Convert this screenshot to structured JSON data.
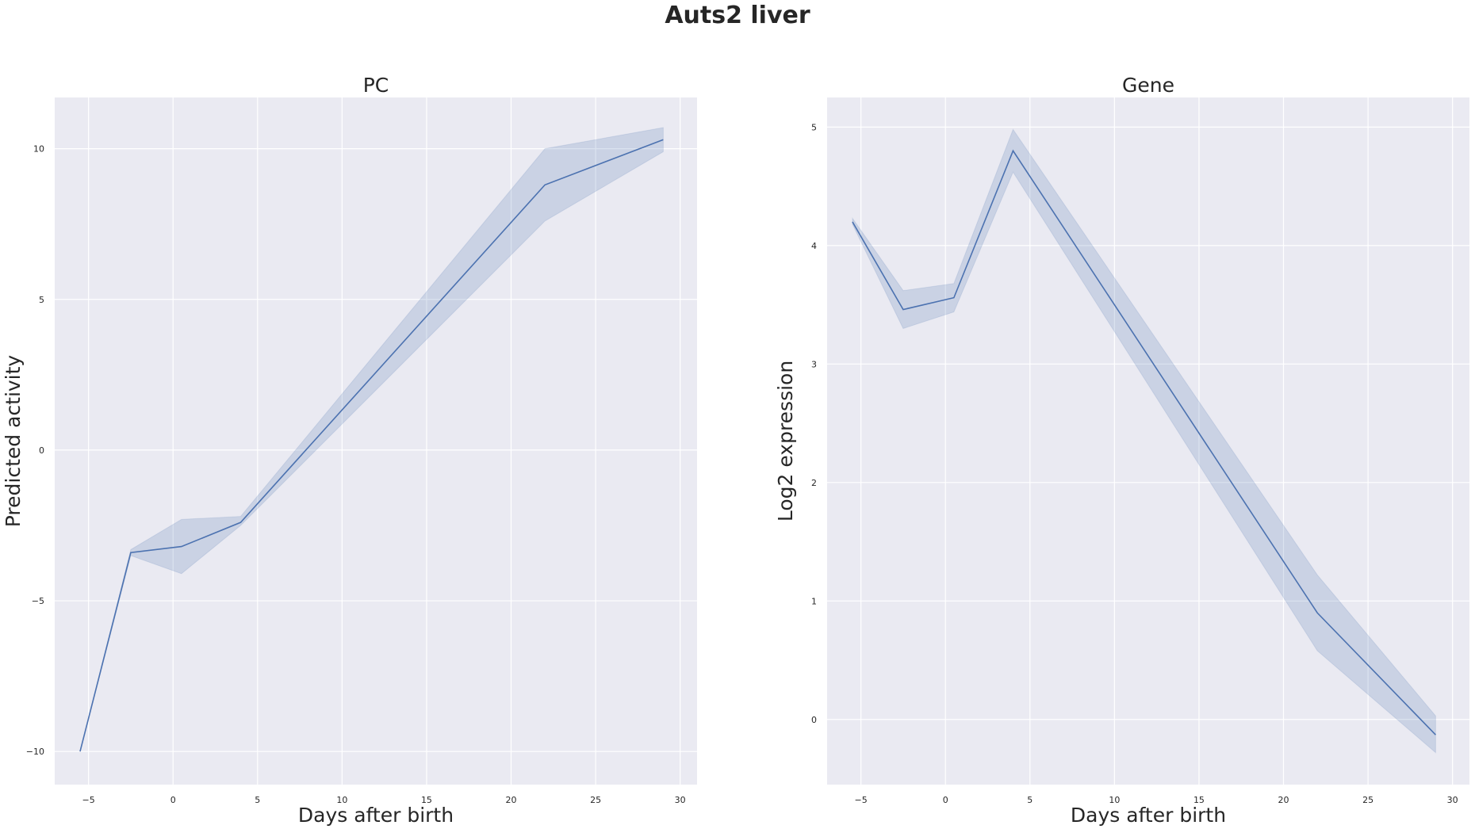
{
  "figure": {
    "title": "Auts2 liver"
  },
  "chart_data": [
    {
      "type": "line",
      "title": "PC",
      "xlabel": "Days after birth",
      "ylabel": "Predicted activity",
      "xlim": [
        -7,
        31
      ],
      "ylim": [
        -11.1,
        11.7
      ],
      "xticks": [
        -5,
        0,
        5,
        10,
        15,
        20,
        25,
        30
      ],
      "yticks": [
        -10,
        -5,
        0,
        5,
        10
      ],
      "xtick_labels": [
        "−5",
        "0",
        "5",
        "10",
        "15",
        "20",
        "25",
        "30"
      ],
      "ytick_labels": [
        "−10",
        "−5",
        "0",
        "5",
        "10"
      ],
      "grid": true,
      "color": "#4c72b0",
      "series": [
        {
          "x": [
            -5.5,
            -2.5,
            0.5,
            4,
            22,
            29
          ],
          "y": [
            -10.0,
            -3.4,
            -3.2,
            -2.4,
            8.8,
            10.3
          ],
          "ci_lower": [
            -10.0,
            -3.5,
            -4.1,
            -2.5,
            7.6,
            9.9
          ],
          "ci_upper": [
            -10.0,
            -3.3,
            -2.3,
            -2.2,
            10.0,
            10.7
          ]
        }
      ]
    },
    {
      "type": "line",
      "title": "Gene",
      "xlabel": "Days after birth",
      "ylabel": "Log2 expression",
      "xlim": [
        -7,
        31
      ],
      "ylim": [
        -0.55,
        5.25
      ],
      "xticks": [
        -5,
        0,
        5,
        10,
        15,
        20,
        25,
        30
      ],
      "yticks": [
        0,
        1,
        2,
        3,
        4,
        5
      ],
      "xtick_labels": [
        "−5",
        "0",
        "5",
        "10",
        "15",
        "20",
        "25",
        "30"
      ],
      "ytick_labels": [
        "0",
        "1",
        "2",
        "3",
        "4",
        "5"
      ],
      "grid": true,
      "color": "#4c72b0",
      "series": [
        {
          "x": [
            -5.5,
            -2.5,
            0.5,
            4,
            22,
            29
          ],
          "y": [
            4.2,
            3.46,
            3.56,
            4.8,
            0.9,
            -0.13
          ],
          "ci_lower": [
            4.18,
            3.3,
            3.44,
            4.62,
            0.58,
            -0.28
          ],
          "ci_upper": [
            4.23,
            3.62,
            3.68,
            4.98,
            1.22,
            0.03
          ]
        }
      ]
    }
  ]
}
